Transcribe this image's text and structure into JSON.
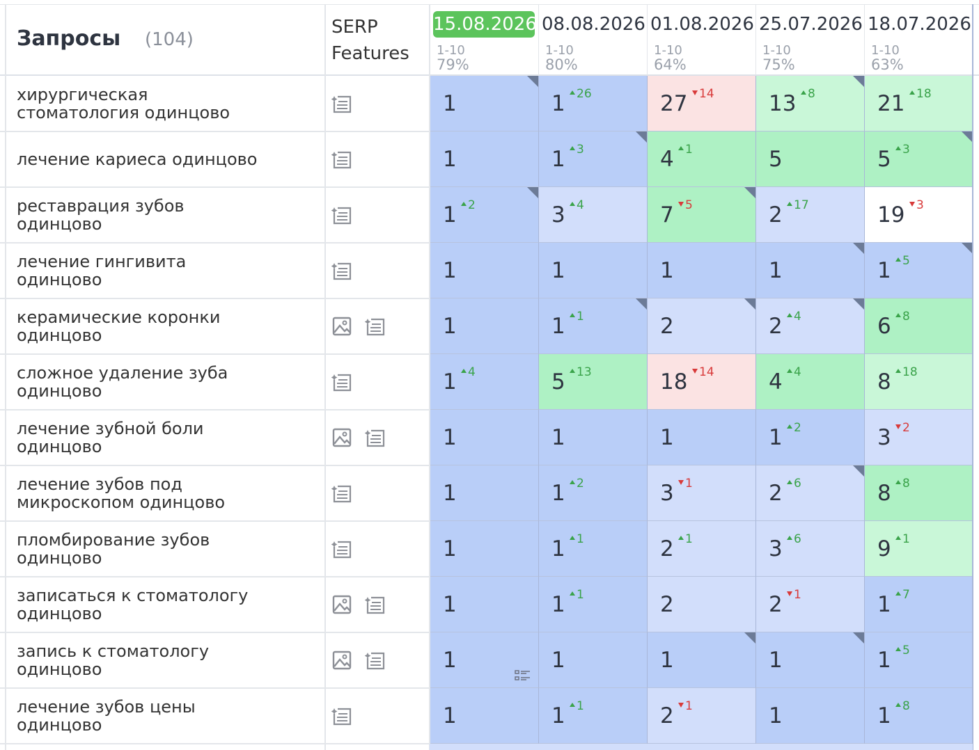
{
  "header": {
    "query_title": "Запросы",
    "count": "(104)",
    "serp_title": "SERP Features"
  },
  "palette": {
    "top1": "#b9cef8",
    "top3": "#d2defb",
    "top10": "#aef1c4",
    "top30": "#c9f7d8",
    "drop": "#fbe3e3",
    "none": "#ffffff",
    "current": "#5cc45c"
  },
  "columns": [
    {
      "date": "15.08.2026",
      "range": "1-10",
      "share": "79%",
      "current": true
    },
    {
      "date": "08.08.2026",
      "range": "1-10",
      "share": "80%"
    },
    {
      "date": "01.08.2026",
      "range": "1-10",
      "share": "64%"
    },
    {
      "date": "25.07.2026",
      "range": "1-10",
      "share": "75%"
    },
    {
      "date": "18.07.2026",
      "range": "1-10",
      "share": "63%"
    }
  ],
  "rows": [
    {
      "query": "хирургическая стоматология одинцово",
      "features": [
        "snippet"
      ],
      "cells": [
        {
          "pos": 1,
          "bg": "top1",
          "corner": true
        },
        {
          "pos": 1,
          "delta": 26,
          "dir": "up",
          "bg": "top1"
        },
        {
          "pos": 27,
          "delta": 14,
          "dir": "down",
          "bg": "drop"
        },
        {
          "pos": 13,
          "delta": 8,
          "dir": "up",
          "bg": "top30",
          "corner": true
        },
        {
          "pos": 21,
          "delta": 18,
          "dir": "up",
          "bg": "top30"
        }
      ]
    },
    {
      "query": "лечение кариеса одинцово",
      "features": [
        "snippet"
      ],
      "cells": [
        {
          "pos": 1,
          "bg": "top1"
        },
        {
          "pos": 1,
          "delta": 3,
          "dir": "up",
          "bg": "top1",
          "corner": true
        },
        {
          "pos": 4,
          "delta": 1,
          "dir": "up",
          "bg": "top10"
        },
        {
          "pos": 5,
          "bg": "top10"
        },
        {
          "pos": 5,
          "delta": 3,
          "dir": "up",
          "bg": "top10",
          "corner": true
        }
      ]
    },
    {
      "query": "реставрация зубов одинцово",
      "features": [
        "snippet"
      ],
      "cells": [
        {
          "pos": 1,
          "delta": 2,
          "dir": "up",
          "bg": "top1",
          "corner": true
        },
        {
          "pos": 3,
          "delta": 4,
          "dir": "up",
          "bg": "top3"
        },
        {
          "pos": 7,
          "delta": 5,
          "dir": "down",
          "bg": "top10",
          "corner": true
        },
        {
          "pos": 2,
          "delta": 17,
          "dir": "up",
          "bg": "top3"
        },
        {
          "pos": 19,
          "delta": 3,
          "dir": "down",
          "bg": "none"
        }
      ]
    },
    {
      "query": "лечение гингивита одинцово",
      "features": [
        "snippet"
      ],
      "cells": [
        {
          "pos": 1,
          "bg": "top1"
        },
        {
          "pos": 1,
          "bg": "top1"
        },
        {
          "pos": 1,
          "bg": "top1"
        },
        {
          "pos": 1,
          "bg": "top1",
          "corner": true
        },
        {
          "pos": 1,
          "delta": 5,
          "dir": "up",
          "bg": "top1",
          "corner": true
        }
      ]
    },
    {
      "query": "керамические коронки одинцово",
      "features": [
        "image",
        "snippet"
      ],
      "cells": [
        {
          "pos": 1,
          "bg": "top1"
        },
        {
          "pos": 1,
          "delta": 1,
          "dir": "up",
          "bg": "top1",
          "corner": true
        },
        {
          "pos": 2,
          "bg": "top3",
          "corner": true
        },
        {
          "pos": 2,
          "delta": 4,
          "dir": "up",
          "bg": "top3",
          "corner": true
        },
        {
          "pos": 6,
          "delta": 8,
          "dir": "up",
          "bg": "top10"
        }
      ]
    },
    {
      "query": "сложное удаление зуба одинцово",
      "features": [
        "snippet"
      ],
      "cells": [
        {
          "pos": 1,
          "delta": 4,
          "dir": "up",
          "bg": "top1"
        },
        {
          "pos": 5,
          "delta": 13,
          "dir": "up",
          "bg": "top10"
        },
        {
          "pos": 18,
          "delta": 14,
          "dir": "down",
          "bg": "drop"
        },
        {
          "pos": 4,
          "delta": 4,
          "dir": "up",
          "bg": "top10"
        },
        {
          "pos": 8,
          "delta": 18,
          "dir": "up",
          "bg": "top30"
        }
      ]
    },
    {
      "query": "лечение зубной боли одинцово",
      "features": [
        "image",
        "snippet"
      ],
      "cells": [
        {
          "pos": 1,
          "bg": "top1"
        },
        {
          "pos": 1,
          "bg": "top1"
        },
        {
          "pos": 1,
          "bg": "top1"
        },
        {
          "pos": 1,
          "delta": 2,
          "dir": "up",
          "bg": "top1"
        },
        {
          "pos": 3,
          "delta": 2,
          "dir": "down",
          "bg": "top3"
        }
      ]
    },
    {
      "query": "лечение зубов под микроскопом одинцово",
      "features": [
        "snippet"
      ],
      "cells": [
        {
          "pos": 1,
          "bg": "top1"
        },
        {
          "pos": 1,
          "delta": 2,
          "dir": "up",
          "bg": "top1"
        },
        {
          "pos": 3,
          "delta": 1,
          "dir": "down",
          "bg": "top3"
        },
        {
          "pos": 2,
          "delta": 6,
          "dir": "up",
          "bg": "top3",
          "corner": true
        },
        {
          "pos": 8,
          "delta": 8,
          "dir": "up",
          "bg": "top10"
        }
      ]
    },
    {
      "query": "пломбирование зубов одинцово",
      "features": [
        "snippet"
      ],
      "cells": [
        {
          "pos": 1,
          "bg": "top1"
        },
        {
          "pos": 1,
          "delta": 1,
          "dir": "up",
          "bg": "top1"
        },
        {
          "pos": 2,
          "delta": 1,
          "dir": "up",
          "bg": "top3"
        },
        {
          "pos": 3,
          "delta": 6,
          "dir": "up",
          "bg": "top3"
        },
        {
          "pos": 9,
          "delta": 1,
          "dir": "up",
          "bg": "top30"
        }
      ]
    },
    {
      "query": "записаться к стоматологу одинцово",
      "features": [
        "image",
        "snippet"
      ],
      "cells": [
        {
          "pos": 1,
          "bg": "top1"
        },
        {
          "pos": 1,
          "delta": 1,
          "dir": "up",
          "bg": "top1"
        },
        {
          "pos": 2,
          "bg": "top3"
        },
        {
          "pos": 2,
          "delta": 1,
          "dir": "down",
          "bg": "top3"
        },
        {
          "pos": 1,
          "delta": 7,
          "dir": "up",
          "bg": "top1"
        }
      ]
    },
    {
      "query": "запись к стоматологу одинцово",
      "features": [
        "image",
        "snippet"
      ],
      "cells": [
        {
          "pos": 1,
          "bg": "top1",
          "list_icon": true
        },
        {
          "pos": 1,
          "bg": "top1"
        },
        {
          "pos": 1,
          "bg": "top1",
          "corner": true
        },
        {
          "pos": 1,
          "bg": "top1",
          "corner": true
        },
        {
          "pos": 1,
          "delta": 5,
          "dir": "up",
          "bg": "top1"
        }
      ]
    },
    {
      "query": "лечение зубов цены одинцово",
      "features": [
        "snippet"
      ],
      "cells": [
        {
          "pos": 1,
          "bg": "top1"
        },
        {
          "pos": 1,
          "delta": 1,
          "dir": "up",
          "bg": "top1"
        },
        {
          "pos": 2,
          "delta": 1,
          "dir": "down",
          "bg": "top3"
        },
        {
          "pos": 1,
          "bg": "top1"
        },
        {
          "pos": 1,
          "delta": 8,
          "dir": "up",
          "bg": "top1"
        }
      ]
    }
  ]
}
